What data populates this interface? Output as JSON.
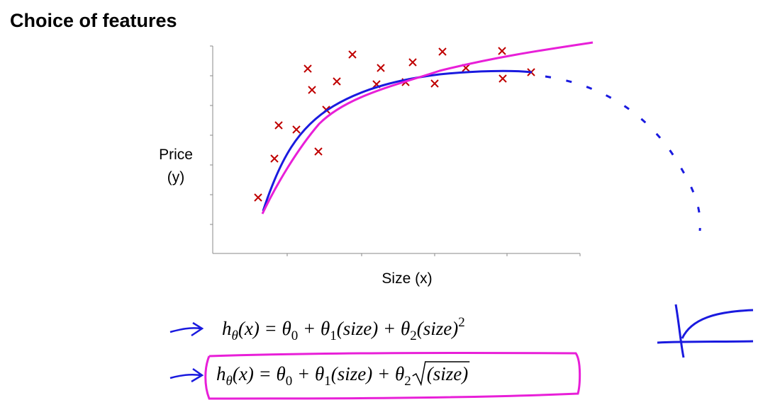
{
  "title": "Choice of features",
  "y_axis_label": [
    "Price",
    "(y)"
  ],
  "x_axis_label": "Size (x)",
  "formulas": [
    [
      {
        "text": "h"
      },
      {
        "sub": "θ"
      },
      {
        "text": "(x) = θ"
      },
      {
        "sub": "0"
      },
      {
        "text": " + θ"
      },
      {
        "sub": "1"
      },
      {
        "text": "(size) + θ"
      },
      {
        "sub": "2"
      },
      {
        "text": "(size)"
      },
      {
        "sup": "2"
      }
    ],
    [
      {
        "text": "h"
      },
      {
        "sub": "θ"
      },
      {
        "text": "(x) = θ"
      },
      {
        "sub": "0"
      },
      {
        "text": " + θ"
      },
      {
        "sub": "1"
      },
      {
        "text": "(size) + θ"
      },
      {
        "sub": "2"
      },
      {
        "sqrt": "(size)"
      }
    ]
  ]
}
